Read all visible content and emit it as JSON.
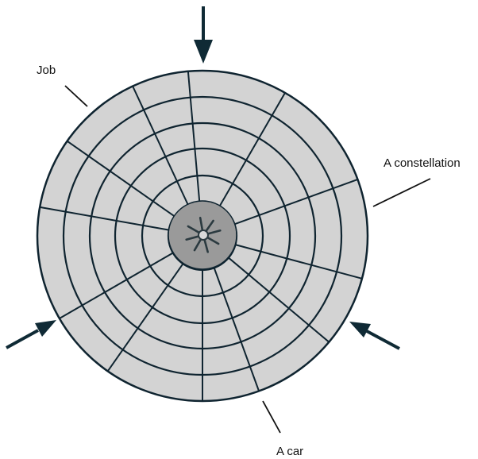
{
  "labels": {
    "job": "Job",
    "constellation": "A constellation",
    "car": "A car"
  },
  "colors": {
    "disc_fill": "#d3d3d3",
    "hub_fill": "#9a9a9a",
    "line": "#0f2430",
    "arrow": "#0f2a35",
    "text": "#111111"
  },
  "structure": {
    "rings": 7,
    "outer_spokes": 12,
    "inner_spokes": 10,
    "hub_spokes": 8
  }
}
